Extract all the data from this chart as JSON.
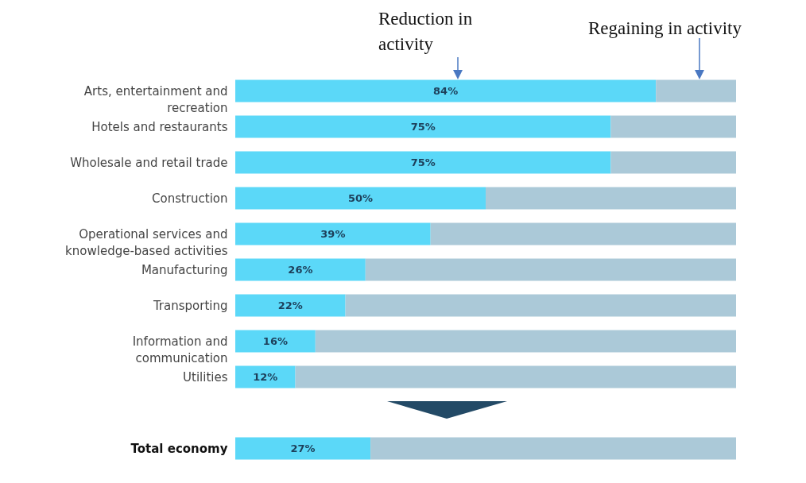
{
  "chart_data": {
    "type": "bar",
    "orientation": "horizontal",
    "stacked": true,
    "legend": false,
    "tick_labels": "y",
    "xlim": [
      0,
      100
    ],
    "categories": [
      "Arts, entertainment and recreation",
      "Hotels and restaurants",
      "Wholesale and retail trade",
      "Construction",
      "Operational services and knowledge-based activities",
      "Manufacturing",
      "Transporting",
      "Information and communication",
      "Utilities",
      "Total economy"
    ],
    "series": [
      {
        "color": "#5bd8f8",
        "values": [
          84,
          75,
          75,
          50,
          39,
          26,
          22,
          16,
          12,
          27
        ],
        "value_labels": [
          "84%",
          "75%",
          "75%",
          "50%",
          "39%",
          "26%",
          "22%",
          "16%",
          "12%",
          "27%"
        ]
      },
      {
        "color": "#abc9d8",
        "values": [
          16,
          25,
          25,
          50,
          61,
          74,
          78,
          84,
          88,
          73
        ]
      }
    ],
    "annotations": [
      "Reduction in activity",
      "Regaining in activity"
    ]
  }
}
